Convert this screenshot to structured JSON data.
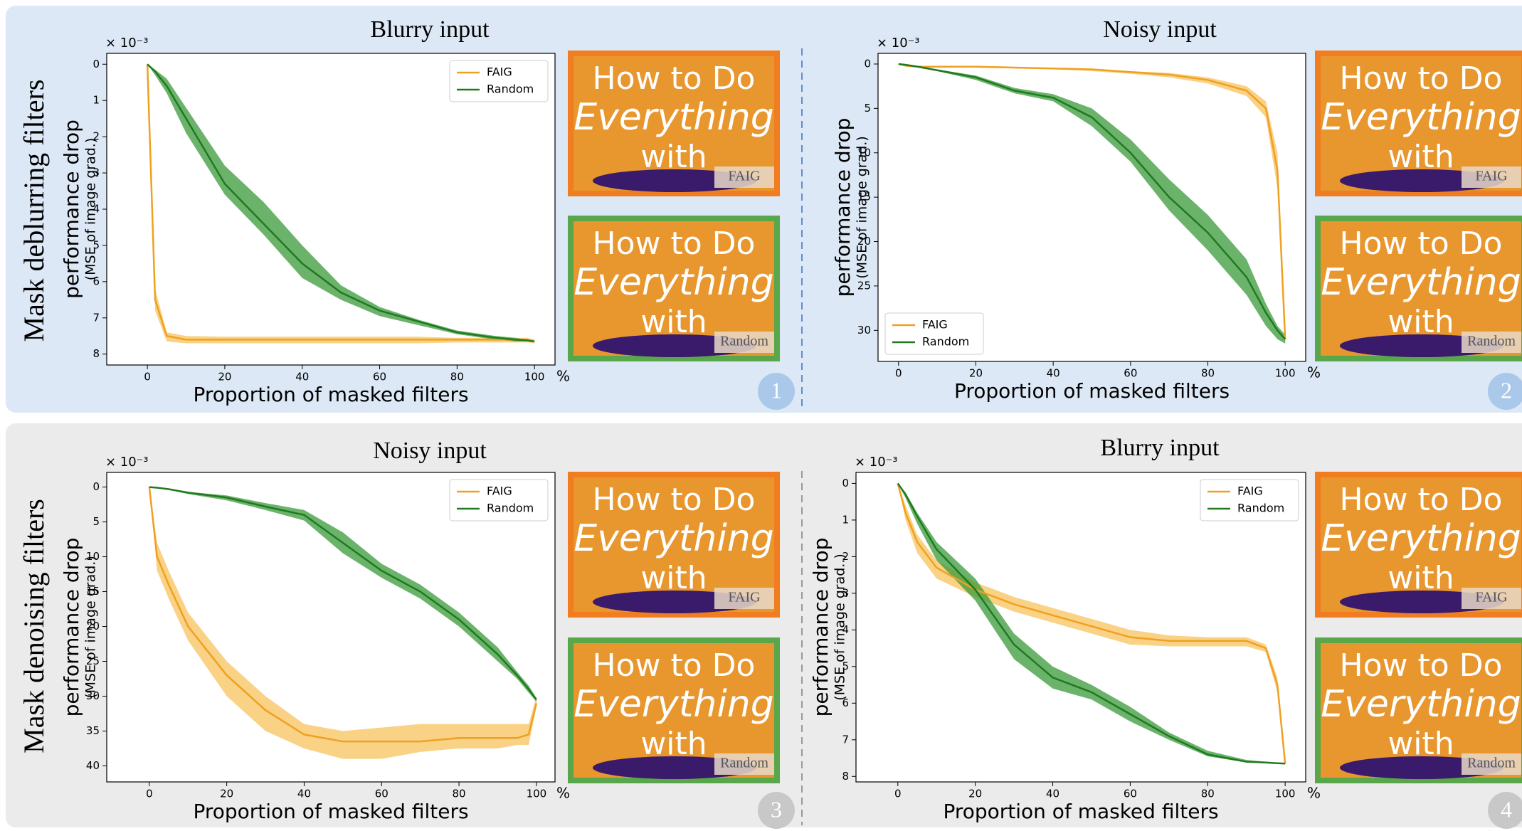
{
  "rows": [
    {
      "label": "Mask deblurring filters"
    },
    {
      "label": "Mask denoising filters"
    }
  ],
  "panels": [
    {
      "badge": "1",
      "thumbnails": [
        {
          "lines": [
            "How to Do",
            "Everything",
            "with"
          ],
          "tag": "FAIG"
        },
        {
          "lines": [
            "How to Do",
            "Everything",
            "with"
          ],
          "tag": "Random"
        }
      ]
    },
    {
      "badge": "2",
      "thumbnails": [
        {
          "lines": [
            "How to Do",
            "Everything",
            "with"
          ],
          "tag": "FAIG"
        },
        {
          "lines": [
            "How to Do",
            "Everything",
            "with"
          ],
          "tag": "Random"
        }
      ]
    },
    {
      "badge": "3",
      "thumbnails": [
        {
          "lines": [
            "How to Do",
            "Everything",
            "with"
          ],
          "tag": "FAIG"
        },
        {
          "lines": [
            "How to Do",
            "Everything",
            "with"
          ],
          "tag": "Random"
        }
      ]
    },
    {
      "badge": "4",
      "thumbnails": [
        {
          "lines": [
            "How to Do",
            "Everything",
            "with"
          ],
          "tag": "FAIG"
        },
        {
          "lines": [
            "How to Do",
            "Everything",
            "with"
          ],
          "tag": "Random"
        }
      ]
    }
  ],
  "chart_data": [
    {
      "type": "line",
      "title": "Blurry input",
      "xlabel": "Proportion of masked filters",
      "x_unit": "%",
      "ylabel": [
        "performance drop",
        "(MSE of image grad.)"
      ],
      "y_multiplier": "× 10⁻³",
      "x": [
        0,
        2,
        5,
        10,
        20,
        30,
        40,
        50,
        60,
        70,
        80,
        90,
        95,
        98,
        100
      ],
      "xlim": [
        -10.5,
        105.3
      ],
      "xticks": [
        0,
        20,
        40,
        60,
        80,
        100
      ],
      "ylim": [
        -0.3,
        8.3
      ],
      "y_inverted": true,
      "yticks": [
        0,
        1,
        2,
        3,
        4,
        5,
        6,
        7,
        8
      ],
      "legend": "upper right",
      "series": [
        {
          "name": "FAIG",
          "color": "#f0a020",
          "band_color": "#f7c35e",
          "values": [
            0,
            6.5,
            7.5,
            7.6,
            7.6,
            7.6,
            7.6,
            7.6,
            7.6,
            7.6,
            7.6,
            7.6,
            7.6,
            7.6,
            7.65
          ],
          "lower": [
            0,
            6.2,
            7.4,
            7.5,
            7.52,
            7.52,
            7.52,
            7.52,
            7.52,
            7.52,
            7.55,
            7.55,
            7.55,
            7.55,
            7.6
          ],
          "upper": [
            0,
            6.8,
            7.65,
            7.7,
            7.7,
            7.7,
            7.7,
            7.7,
            7.7,
            7.7,
            7.68,
            7.68,
            7.68,
            7.68,
            7.7
          ]
        },
        {
          "name": "Random",
          "color": "#1f7a1f",
          "band_color": "#3a9a3a",
          "values": [
            0,
            0.2,
            0.6,
            1.5,
            3.3,
            4.4,
            5.5,
            6.3,
            6.8,
            7.1,
            7.4,
            7.55,
            7.6,
            7.62,
            7.65
          ],
          "lower": [
            0,
            0.15,
            0.4,
            1.2,
            2.8,
            3.8,
            5.0,
            6.1,
            6.7,
            7.05,
            7.35,
            7.5,
            7.55,
            7.6,
            7.65
          ],
          "upper": [
            0,
            0.3,
            0.8,
            1.9,
            3.6,
            4.7,
            5.9,
            6.5,
            6.95,
            7.2,
            7.45,
            7.6,
            7.65,
            7.65,
            7.65
          ]
        }
      ]
    },
    {
      "type": "line",
      "title": "Noisy input",
      "xlabel": "Proportion of masked filters",
      "x_unit": "%",
      "ylabel": [
        "performance drop",
        "(MSE of image grad.)"
      ],
      "y_multiplier": "× 10⁻³",
      "x": [
        0,
        2,
        5,
        10,
        20,
        30,
        40,
        50,
        60,
        70,
        80,
        90,
        95,
        98,
        100
      ],
      "xlim": [
        -5.3,
        105.3
      ],
      "xticks": [
        0,
        20,
        40,
        60,
        80,
        100
      ],
      "ylim": [
        -1.2,
        33.5
      ],
      "y_inverted": true,
      "yticks": [
        0,
        5,
        10,
        15,
        20,
        25,
        30
      ],
      "legend": "lower left",
      "series": [
        {
          "name": "FAIG",
          "color": "#f0a020",
          "band_color": "#f7c35e",
          "values": [
            0,
            0.2,
            0.3,
            0.3,
            0.3,
            0.4,
            0.5,
            0.6,
            0.9,
            1.2,
            1.8,
            3,
            5,
            12,
            31
          ],
          "lower": [
            0,
            0.2,
            0.3,
            0.3,
            0.3,
            0.4,
            0.5,
            0.6,
            0.8,
            1.0,
            1.5,
            2.5,
            4.2,
            10,
            30.5
          ],
          "upper": [
            0,
            0.2,
            0.3,
            0.3,
            0.4,
            0.5,
            0.6,
            0.8,
            1.1,
            1.5,
            2.2,
            3.6,
            6,
            14,
            31.5
          ]
        },
        {
          "name": "Random",
          "color": "#1f7a1f",
          "band_color": "#3a9a3a",
          "values": [
            0,
            0.1,
            0.3,
            0.7,
            1.5,
            3,
            3.8,
            6,
            10,
            15,
            19,
            24,
            28,
            30,
            31
          ],
          "lower": [
            0,
            0.1,
            0.3,
            0.6,
            1.3,
            2.7,
            3.4,
            5,
            8.5,
            13,
            17,
            22,
            27,
            29.5,
            30.5
          ],
          "upper": [
            0,
            0.2,
            0.4,
            0.8,
            1.8,
            3.3,
            4.2,
            7,
            11,
            16.5,
            21,
            26,
            29.5,
            31,
            31.5
          ]
        }
      ]
    },
    {
      "type": "line",
      "title": "Noisy input",
      "xlabel": "Proportion of masked filters",
      "x_unit": "%",
      "ylabel": [
        "performance drop",
        "(MSE of image grad.)"
      ],
      "y_multiplier": "× 10⁻³",
      "x": [
        0,
        2,
        5,
        10,
        20,
        30,
        40,
        50,
        60,
        70,
        80,
        90,
        95,
        98,
        100
      ],
      "xlim": [
        -11,
        104.8
      ],
      "xticks": [
        0,
        20,
        40,
        60,
        80,
        100
      ],
      "ylim": [
        -2.1,
        42.3
      ],
      "y_inverted": true,
      "yticks": [
        0,
        5,
        10,
        15,
        20,
        25,
        30,
        35,
        40
      ],
      "legend": "upper right",
      "series": [
        {
          "name": "FAIG",
          "color": "#f0a020",
          "band_color": "#f7c35e",
          "values": [
            0,
            10,
            14,
            20,
            27,
            32,
            35.5,
            36.5,
            36.5,
            36.5,
            36,
            36,
            36,
            35.5,
            31
          ],
          "lower": [
            0,
            8,
            12,
            18,
            25,
            30,
            34,
            35,
            34.5,
            34,
            34,
            34,
            34,
            34,
            30
          ],
          "upper": [
            0,
            12,
            16,
            22,
            30,
            35,
            37.5,
            39,
            39,
            38,
            37.5,
            37.5,
            37,
            37,
            31.5
          ]
        },
        {
          "name": "Random",
          "color": "#1f7a1f",
          "band_color": "#3a9a3a",
          "values": [
            0,
            0.1,
            0.3,
            0.8,
            1.5,
            2.8,
            4,
            8,
            12,
            15,
            19,
            24,
            27,
            29,
            30.5
          ],
          "lower": [
            0,
            0.1,
            0.3,
            0.7,
            1.2,
            2.3,
            3.3,
            6.5,
            11,
            14,
            18,
            23,
            26.5,
            28.5,
            30.3
          ],
          "upper": [
            0,
            0.2,
            0.4,
            1.0,
            1.9,
            3.3,
            4.8,
            9.5,
            13,
            16,
            20,
            25,
            27.5,
            29.5,
            30.8
          ]
        }
      ]
    },
    {
      "type": "line",
      "title": "Blurry input",
      "xlabel": "Proportion of masked filters",
      "x_unit": "%",
      "ylabel": [
        "performance drop",
        "(MSE of image grad..)"
      ],
      "y_multiplier": "× 10⁻³",
      "x": [
        0,
        2,
        5,
        10,
        20,
        30,
        40,
        50,
        60,
        70,
        80,
        90,
        95,
        98,
        100
      ],
      "xlim": [
        -10.8,
        105.3
      ],
      "xticks": [
        0,
        20,
        40,
        60,
        80,
        100
      ],
      "ylim": [
        -0.3,
        8.15
      ],
      "y_inverted": true,
      "yticks": [
        0,
        1,
        2,
        3,
        4,
        5,
        6,
        7,
        8
      ],
      "legend": "upper right",
      "series": [
        {
          "name": "FAIG",
          "color": "#f0a020",
          "band_color": "#f7c35e",
          "values": [
            0,
            0.8,
            1.6,
            2.3,
            2.9,
            3.3,
            3.6,
            3.9,
            4.2,
            4.3,
            4.3,
            4.3,
            4.5,
            5.5,
            7.65
          ],
          "lower": [
            0,
            0.6,
            1.4,
            2.1,
            2.7,
            3.1,
            3.4,
            3.7,
            4.0,
            4.15,
            4.2,
            4.2,
            4.4,
            5.3,
            7.6
          ],
          "upper": [
            0,
            1.0,
            1.9,
            2.6,
            3.1,
            3.5,
            3.8,
            4.1,
            4.4,
            4.45,
            4.45,
            4.45,
            4.6,
            5.7,
            7.7
          ]
        },
        {
          "name": "Random",
          "color": "#1f7a1f",
          "band_color": "#3a9a3a",
          "values": [
            0,
            0.3,
            0.9,
            1.8,
            2.9,
            4.4,
            5.3,
            5.7,
            6.3,
            6.9,
            7.4,
            7.6,
            7.62,
            7.64,
            7.65
          ],
          "lower": [
            0,
            0.25,
            0.8,
            1.6,
            2.6,
            4.1,
            5.0,
            5.5,
            6.1,
            6.8,
            7.3,
            7.55,
            7.6,
            7.62,
            7.65
          ],
          "upper": [
            0,
            0.4,
            1.1,
            2.1,
            3.2,
            4.8,
            5.6,
            5.9,
            6.5,
            7.0,
            7.45,
            7.62,
            7.64,
            7.65,
            7.65
          ]
        }
      ]
    }
  ]
}
